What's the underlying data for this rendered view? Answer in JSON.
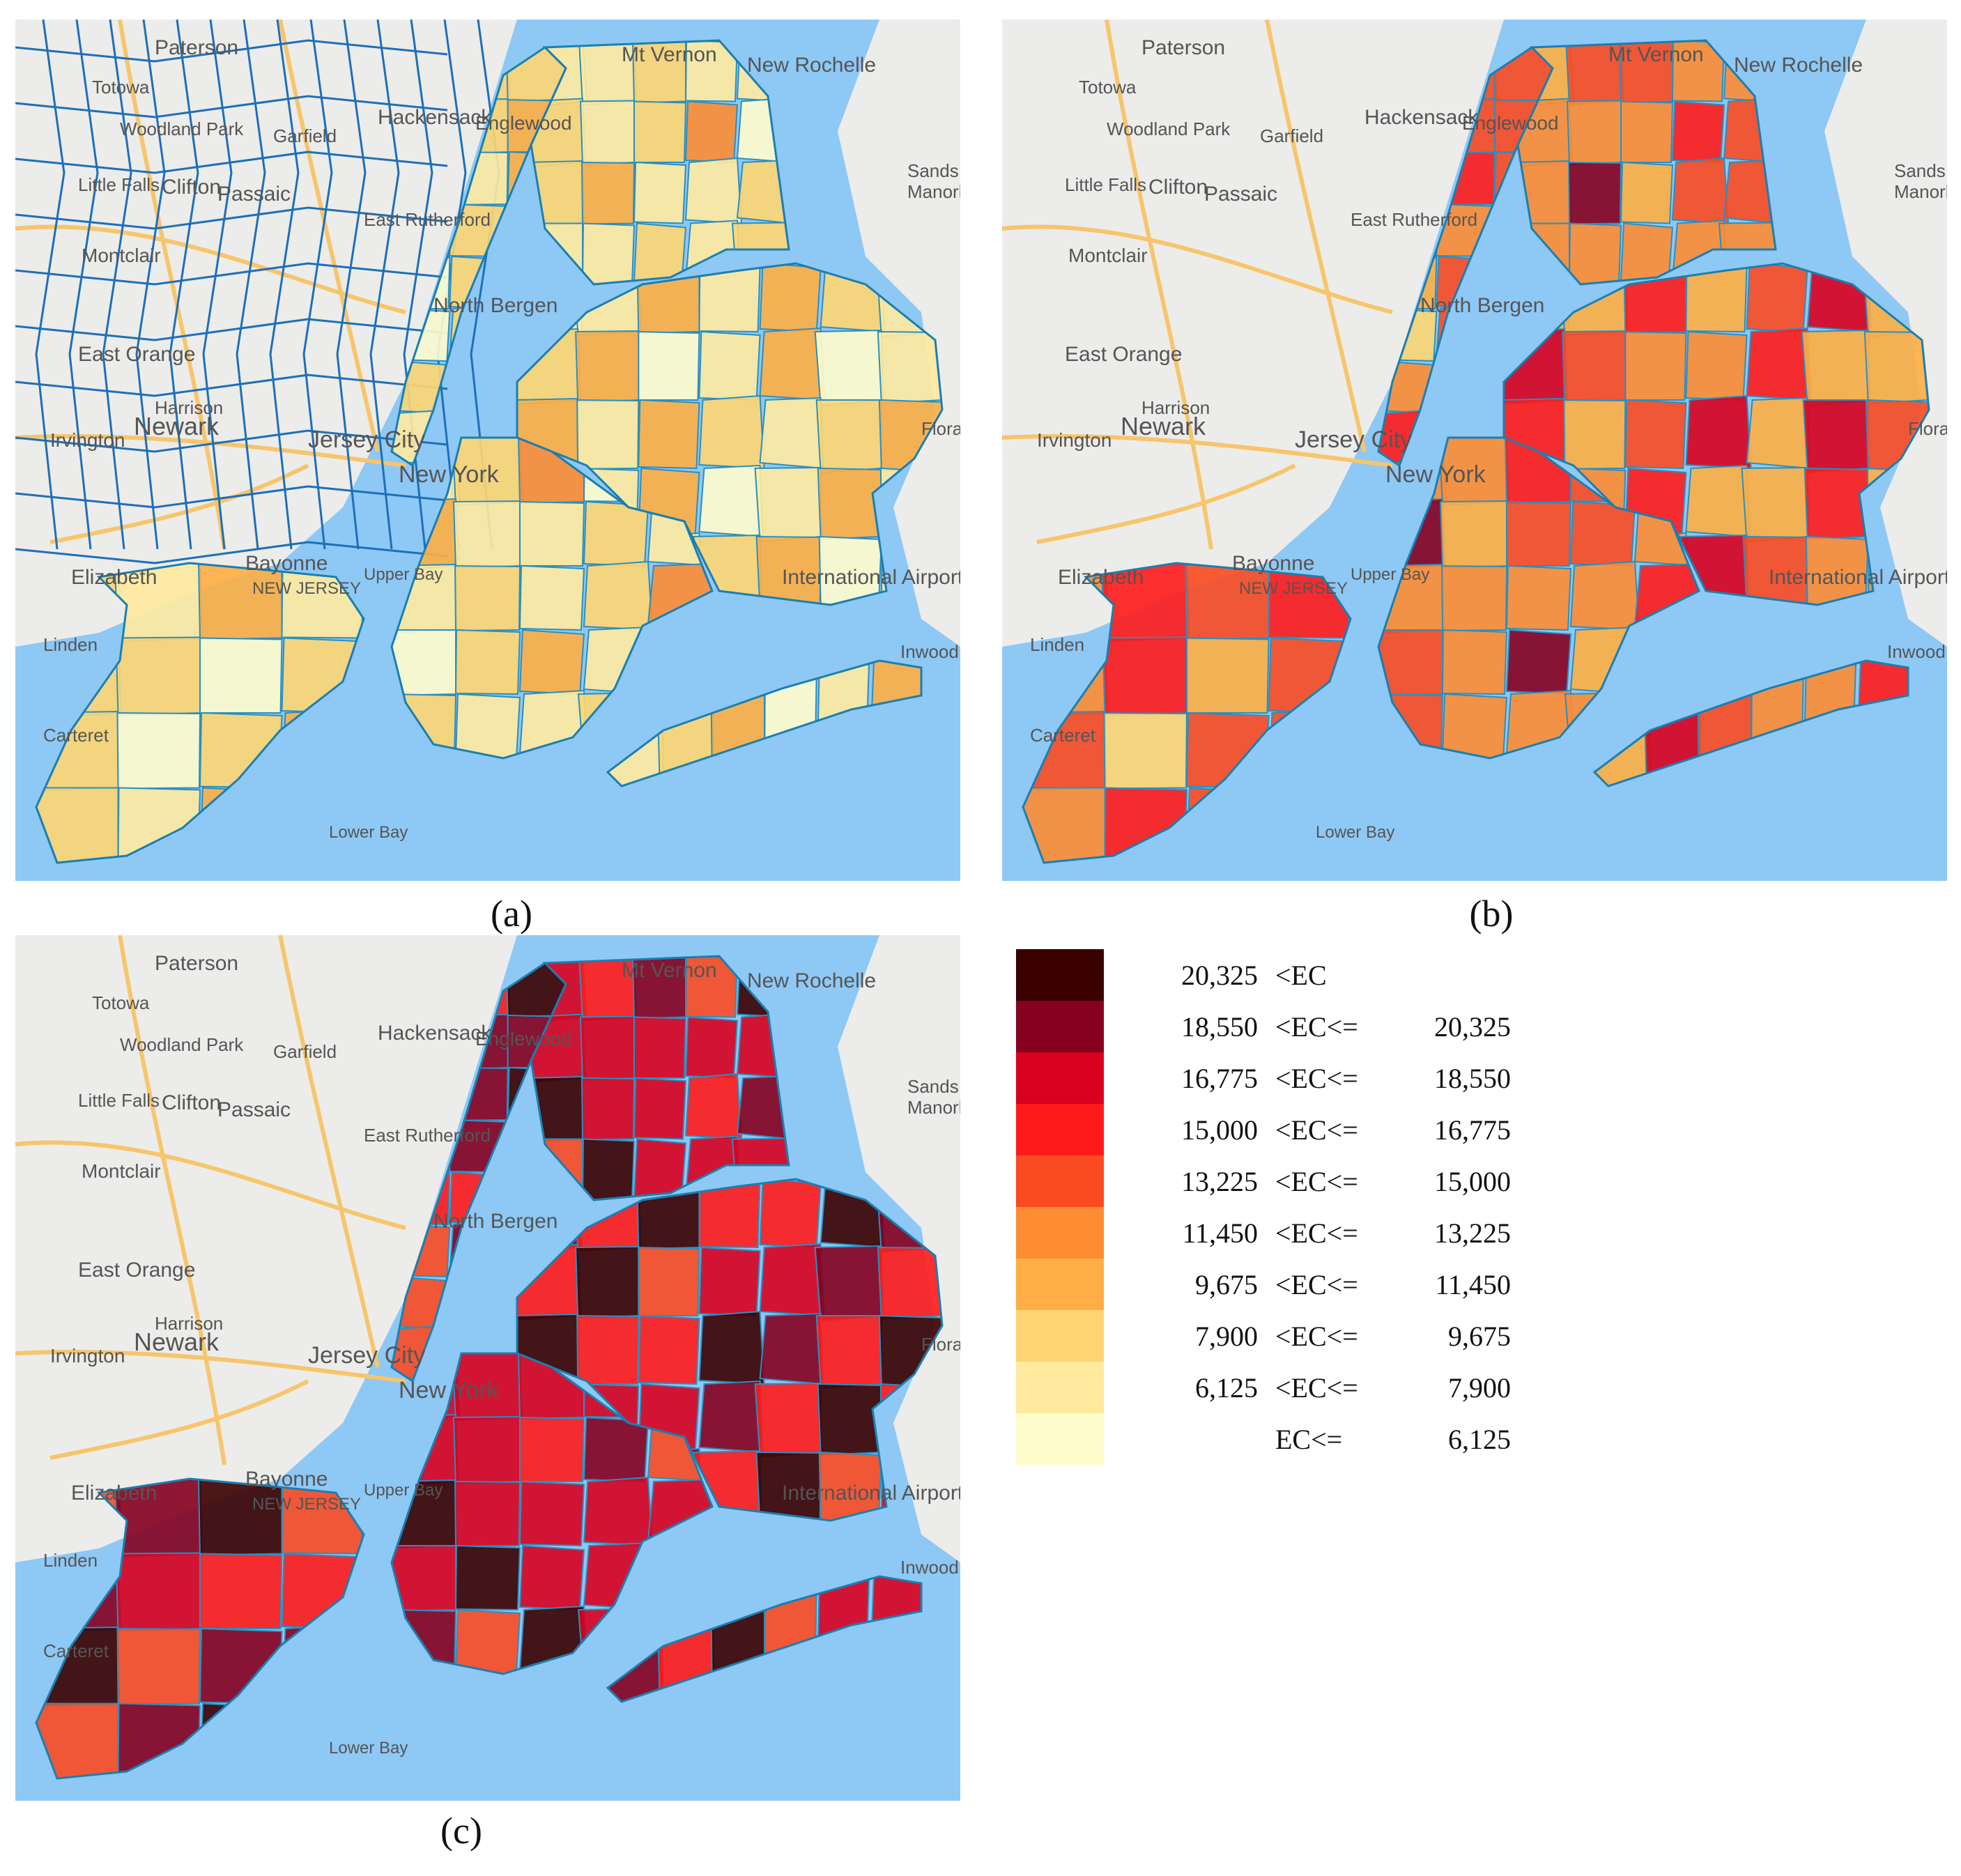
{
  "panels": [
    {
      "id": "a",
      "caption": "(a)",
      "fill_level": [
        2,
        1,
        1,
        2,
        1,
        1,
        2,
        2,
        3,
        1,
        2,
        2
      ]
    },
    {
      "id": "b",
      "caption": "(b)",
      "fill_level": [
        4,
        5,
        4,
        5,
        4,
        3,
        5,
        4,
        5,
        6,
        4,
        7
      ]
    },
    {
      "id": "c",
      "caption": "(c)",
      "fill_level": [
        8,
        6,
        7,
        6,
        9,
        6,
        8,
        7,
        6,
        8,
        9,
        6
      ]
    }
  ],
  "legend": {
    "items": [
      {
        "color": "#3b0000",
        "low": "20,325",
        "op": "<EC",
        "high": ""
      },
      {
        "color": "#86001f",
        "low": "18,550",
        "op": "<EC<=",
        "high": "20,325"
      },
      {
        "color": "#d9001f",
        "low": "16,775",
        "op": "<EC<=",
        "high": "18,550"
      },
      {
        "color": "#ff1a1a",
        "low": "15,000",
        "op": "<EC<=",
        "high": "16,775"
      },
      {
        "color": "#fa4a22",
        "low": "13,225",
        "op": "<EC<=",
        "high": "15,000"
      },
      {
        "color": "#fd8c33",
        "low": "11,450",
        "op": "<EC<=",
        "high": "13,225"
      },
      {
        "color": "#feae44",
        "low": "9,675",
        "op": "<EC<=",
        "high": "11,450"
      },
      {
        "color": "#fed572",
        "low": "7,900",
        "op": "<EC<=",
        "high": "9,675"
      },
      {
        "color": "#ffeaa0",
        "low": "6,125",
        "op": "<EC<=",
        "high": "7,900"
      },
      {
        "color": "#fffccc",
        "low": "",
        "op": "EC<=",
        "high": "6,125"
      }
    ]
  },
  "map_labels": {
    "paterson": "Paterson",
    "totowa": "Totowa",
    "woodland_park": "Woodland Park",
    "garfield": "Garfield",
    "hackensack": "Hackensack",
    "englewood": "Englewood",
    "mt_vernon": "Mt Vernon",
    "new_rochelle": "New Rochelle",
    "little_falls": "Little Falls",
    "clifton": "Clifton",
    "passaic": "Passaic",
    "east_rutherford": "East Rutherford",
    "montclair": "Montclair",
    "north_bergen": "North Bergen",
    "east_orange": "East Orange",
    "harrison": "Harrison",
    "newark": "Newark",
    "irvington": "Irvington",
    "jersey_city": "Jersey City",
    "new_york": "New York",
    "bayonne": "Bayonne",
    "elizabeth": "Elizabeth",
    "linden": "Linden",
    "carteret": "Carteret",
    "new_jersey": "NEW JERSEY",
    "upper_bay": "Upper Bay",
    "lower_bay": "Lower Bay",
    "jfk": "International Airport",
    "inwood": "Inwood",
    "sands_point": "Sands Point",
    "manorhaven": "Manorhaven",
    "floral_park": "Floral Park"
  }
}
